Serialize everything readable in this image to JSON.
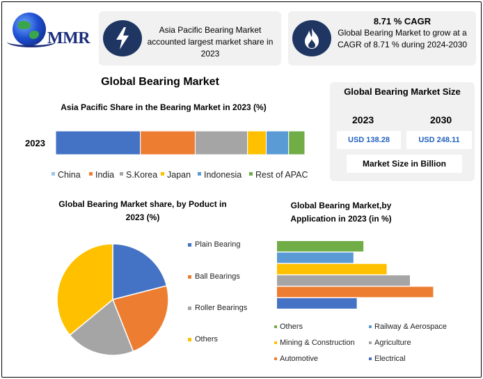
{
  "logo": {
    "text": "MMR"
  },
  "info_left": {
    "icon": "lightning-icon",
    "text": "Asia Pacific Bearing Market accounted largest market share in 2023"
  },
  "info_right": {
    "icon": "flame-icon",
    "title": "8.71 % CAGR",
    "text": "Global Bearing Market to grow at a CAGR of 8.71 % during 2024-2030"
  },
  "main_title": "Global Bearing Market",
  "market_size": {
    "title": "Global Bearing Market Size",
    "year_a": "2023",
    "value_a": "USD 138.28",
    "year_b": "2030",
    "value_b": "USD 248.11",
    "unit": "Market Size in Billion"
  },
  "colors": {
    "blue": "#4472c4",
    "orange": "#ed7d31",
    "gray": "#a5a5a5",
    "yellow": "#ffc000",
    "lightblue": "#5b9bd5",
    "green": "#70ad47",
    "icon_bg": "#1f3562"
  },
  "chart_data": [
    {
      "type": "bar",
      "orientation": "horizontal-stacked",
      "title": "Asia Pacific Share in the Bearing Market in 2023 (%)",
      "categories": [
        "2023"
      ],
      "series": [
        {
          "name": "China",
          "values": [
            34
          ]
        },
        {
          "name": "India",
          "values": [
            22
          ]
        },
        {
          "name": "S.Korea",
          "values": [
            21
          ]
        },
        {
          "name": "Japan",
          "values": [
            7.5
          ]
        },
        {
          "name": "Indonesia",
          "values": [
            9
          ]
        },
        {
          "name": "Rest of APAC",
          "values": [
            6.5
          ]
        }
      ],
      "legend": "bottom"
    },
    {
      "type": "pie",
      "title": "Global Bearing Market share, by Poduct in 2023  (%)",
      "labels": [
        "Plain Bearing",
        "Ball Bearings",
        "Roller Bearings",
        "Others"
      ],
      "values": [
        21,
        23,
        20,
        36
      ],
      "legend": "right"
    },
    {
      "type": "bar",
      "orientation": "horizontal",
      "title": "Global Bearing Market,by Application  in 2023 (in %)",
      "categories": [
        "Others",
        "Railway & Aerospace",
        "Mining & Construction",
        "Agriculture",
        "Automotive",
        "Electrical"
      ],
      "values": [
        13,
        11.5,
        16.5,
        20,
        23.5,
        12
      ],
      "legend": "bottom"
    }
  ]
}
